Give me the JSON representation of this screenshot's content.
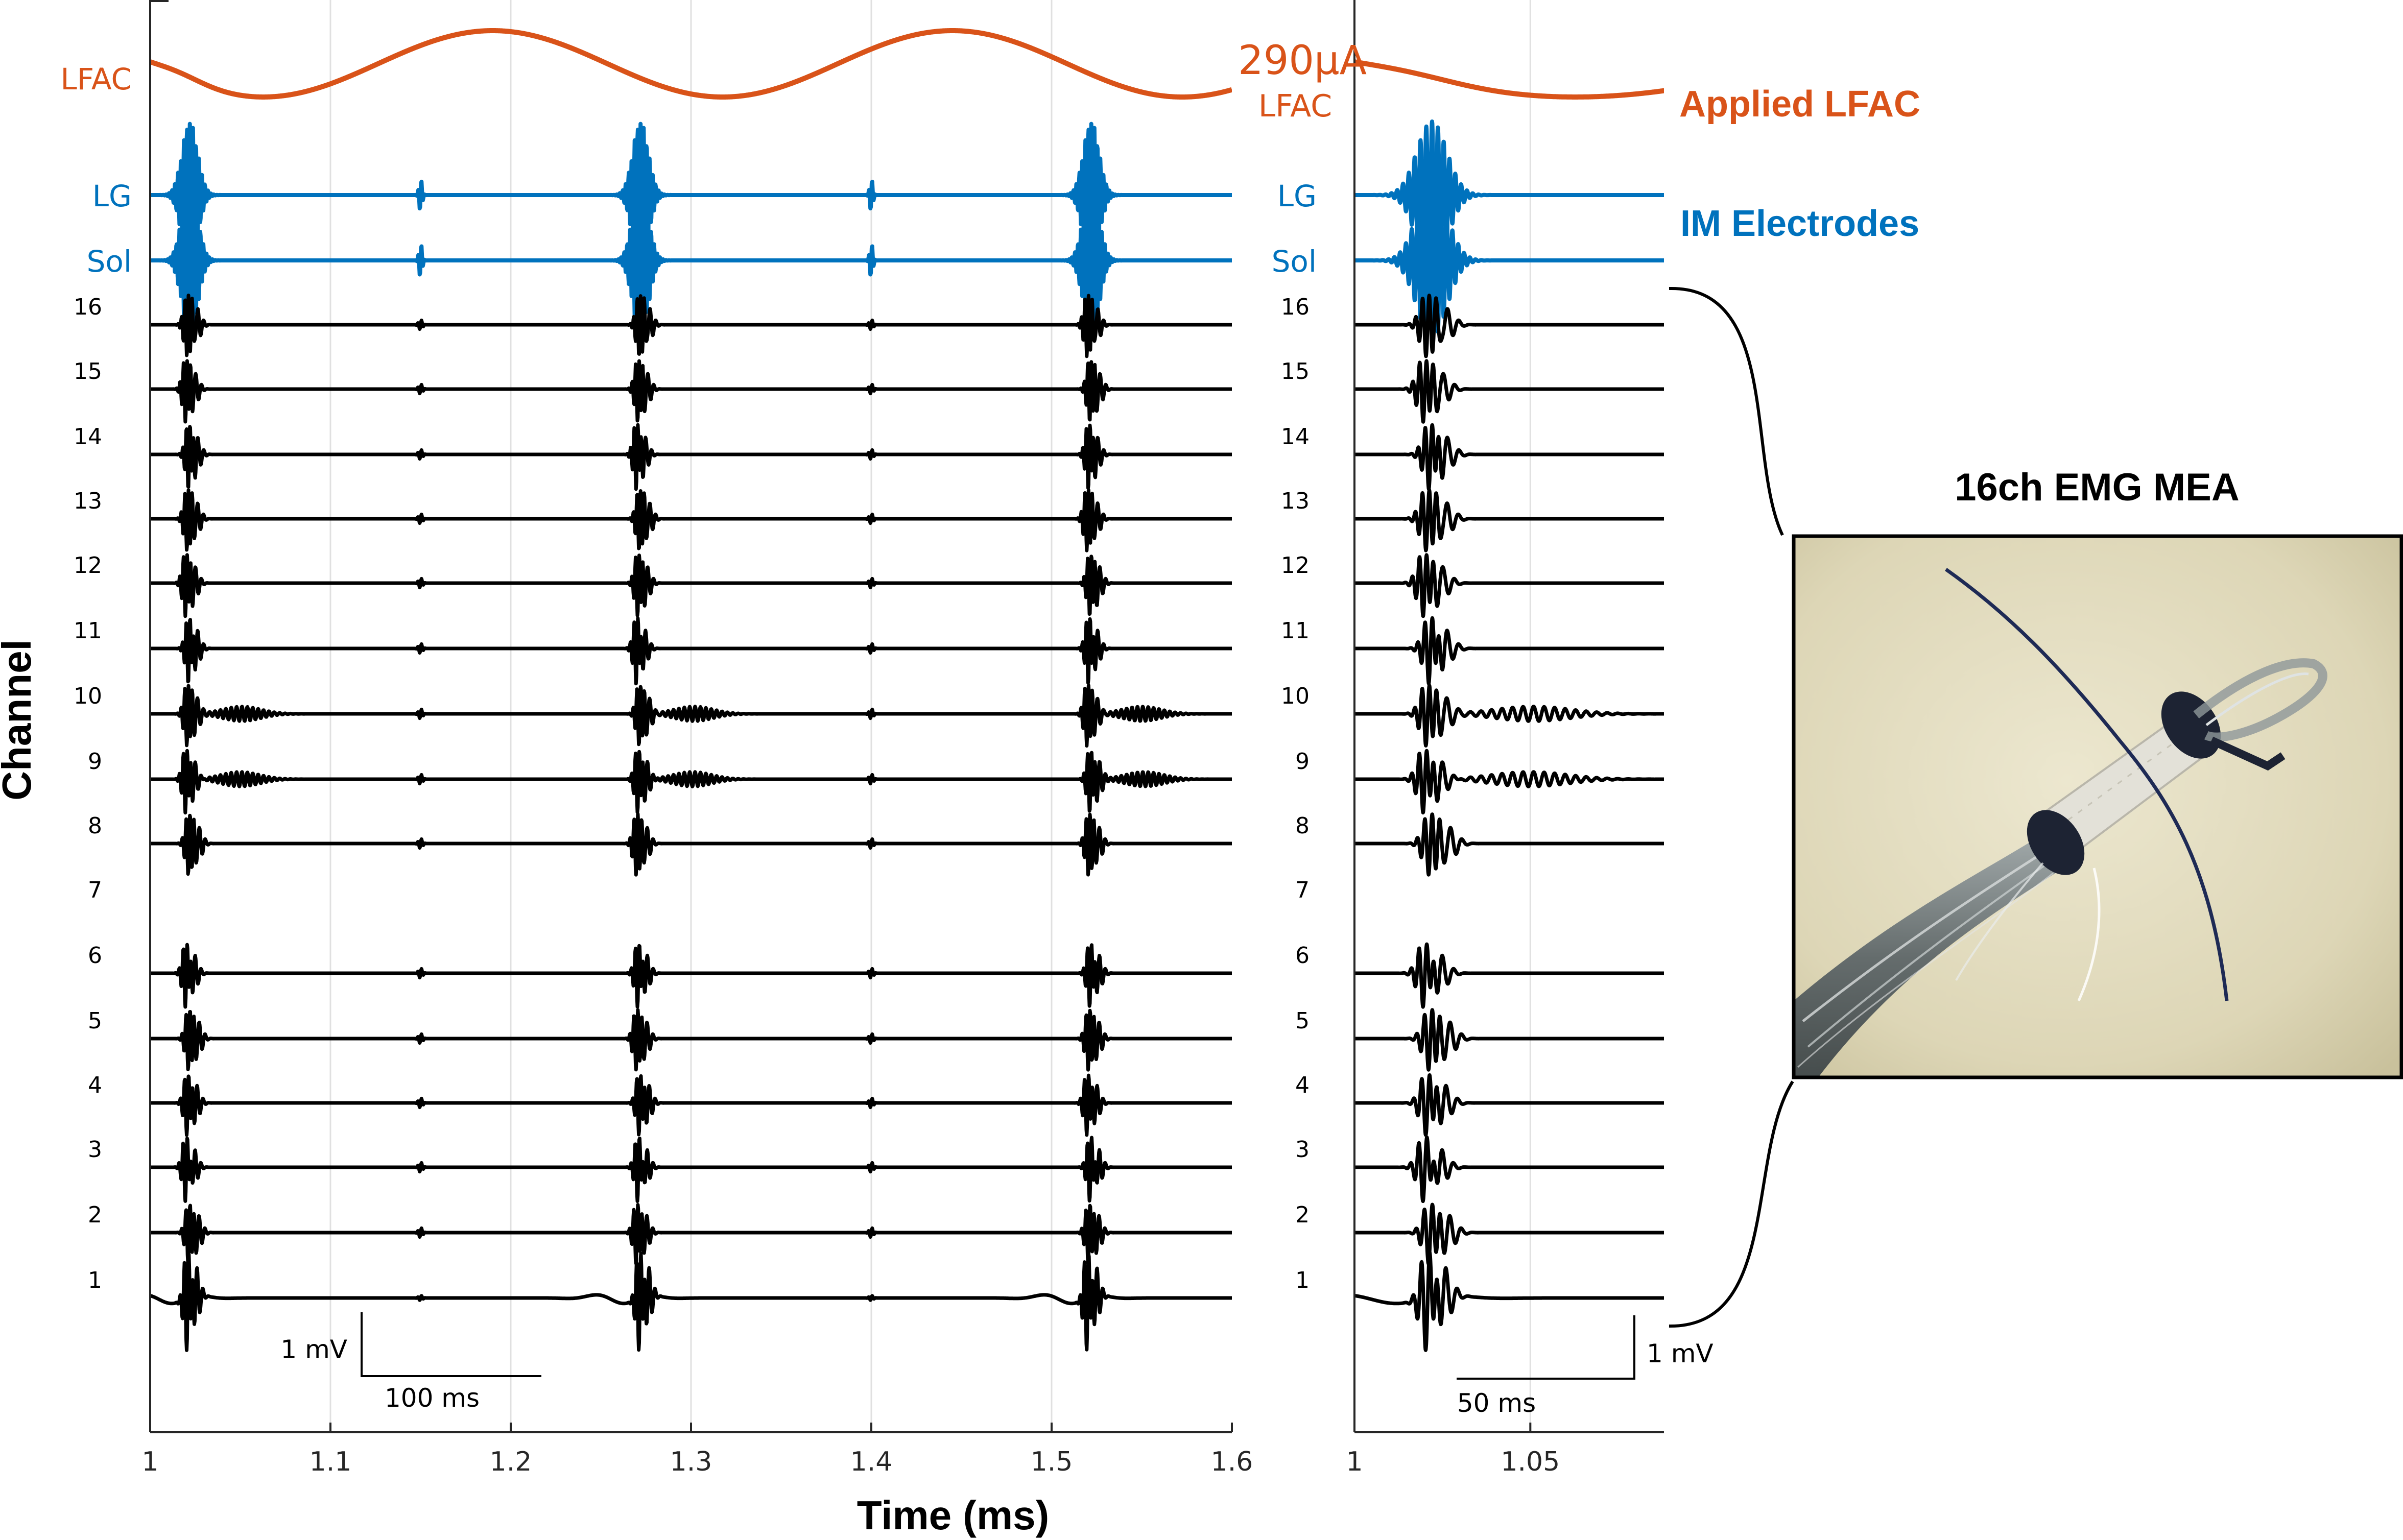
{
  "chart_data": [
    {
      "type": "line",
      "panel": "main",
      "title": "",
      "xlabel": "Time (ms)",
      "ylabel": "Channel",
      "xlim": [
        1.0,
        1.6
      ],
      "x_ticks": [
        "1",
        "1.1",
        "1.2",
        "1.3",
        "1.4",
        "1.5",
        "1.6"
      ],
      "grid": "vertical",
      "top_traces": [
        {
          "name": "LFAC",
          "color": "#d95319"
        },
        {
          "name": "LG",
          "color": "#0072bd"
        },
        {
          "name": "Sol",
          "color": "#0072bd"
        }
      ],
      "channels": [
        "16",
        "15",
        "14",
        "13",
        "12",
        "11",
        "10",
        "9",
        "8",
        "7",
        "6",
        "5",
        "4",
        "3",
        "2",
        "1"
      ],
      "lfac_peaks_ms": [
        1.19,
        1.445
      ],
      "lfac_troughs_ms": [
        1.06,
        1.305,
        1.555
      ],
      "burst_times_ms": [
        1.02,
        1.27,
        1.52
      ],
      "minor_spike_times_ms": [
        1.15,
        1.4
      ],
      "scalebar": {
        "amplitude": "1 mV",
        "time": "100 ms"
      }
    },
    {
      "type": "line",
      "panel": "zoom",
      "title": "",
      "xlabel": "",
      "xlim": [
        1.0,
        1.088
      ],
      "x_ticks": [
        "1",
        "1.05"
      ],
      "grid": "vertical",
      "top_traces": [
        {
          "name": "LFAC",
          "color": "#d95319"
        },
        {
          "name": "LG",
          "color": "#0072bd"
        },
        {
          "name": "Sol",
          "color": "#0072bd"
        }
      ],
      "channels": [
        "16",
        "15",
        "14",
        "13",
        "12",
        "11",
        "10",
        "9",
        "8",
        "7",
        "6",
        "5",
        "4",
        "3",
        "2",
        "1"
      ],
      "burst_times_ms": [
        1.02
      ],
      "scalebar": {
        "amplitude": "1 mV",
        "time": "50 ms"
      }
    }
  ],
  "annotations": {
    "stim_amplitude": "290μA",
    "stim_label": "LFAC",
    "applied_label": "Applied LFAC",
    "im_label": "IM Electrodes",
    "mea_label": "16ch EMG MEA"
  },
  "colors": {
    "lfac": "#d95319",
    "im": "#0072bd",
    "emg": "#000000",
    "grid": "#e0e0e0"
  }
}
